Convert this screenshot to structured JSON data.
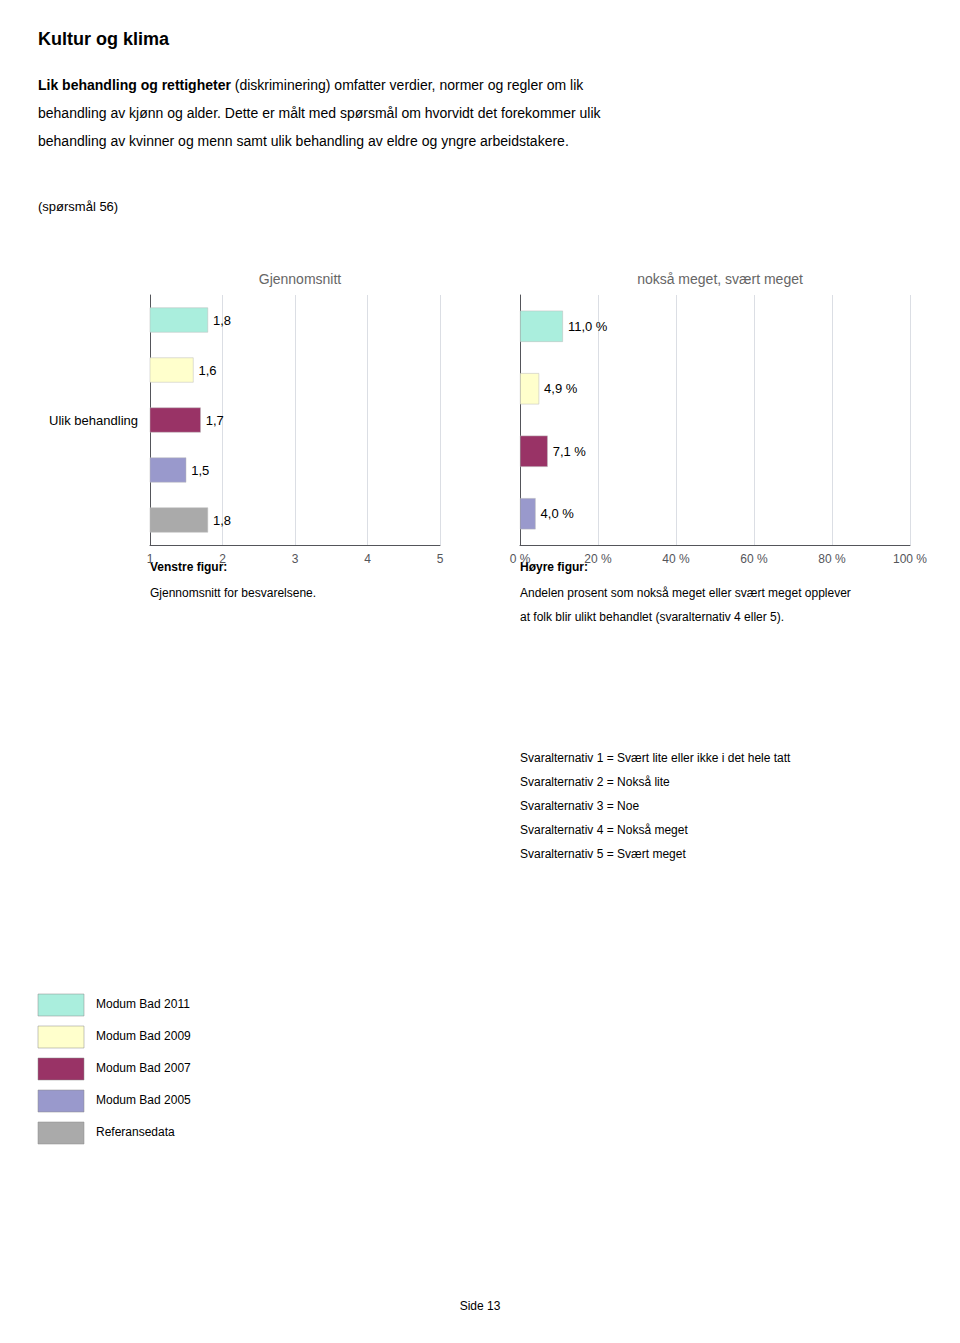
{
  "title": "Kultur og klima",
  "intro_bold": "Lik behandling og rettigheter",
  "intro_lines": [
    " (diskriminering) omfatter verdier, normer og regler om lik",
    "behandling av kjønn og alder. Dette er målt med spørsmål om hvorvidt det forekommer ulik",
    "behandling av kvinner og menn samt ulik behandling av eldre og yngre arbeidstakere."
  ],
  "question": "(spørsmål 56)",
  "chart_data": [
    {
      "type": "bar",
      "orientation": "horizontal",
      "title": "Gjennomsnitt",
      "ylabel": "Ulik behandling",
      "categories": [
        "Modum Bad 2011",
        "Modum Bad 2009",
        "Modum Bad 2007",
        "Modum Bad 2005",
        "Referansedata"
      ],
      "values": [
        1.8,
        1.6,
        1.7,
        1.5,
        1.8
      ],
      "value_labels": [
        "1,8",
        "1,6",
        "1,7",
        "1,5",
        "1,8"
      ],
      "colors": [
        "#aaeedd",
        "#ffffcc",
        "#993366",
        "#9999cc",
        "#aaaaaa"
      ],
      "xlim": [
        1,
        5
      ],
      "xticks": [
        1,
        2,
        3,
        4,
        5
      ],
      "grid": true,
      "data_labels": true,
      "tick_labels": "x",
      "legend": "lower left",
      "caption_title": "Venstre figur:",
      "caption_lines": [
        "Gjennomsnitt for besvarelsene."
      ]
    },
    {
      "type": "bar",
      "orientation": "horizontal",
      "title": "nokså meget, svært meget",
      "categories": [
        "Modum Bad 2011",
        "Modum Bad 2009",
        "Modum Bad 2007",
        "Modum Bad 2005"
      ],
      "values": [
        11.0,
        4.9,
        7.1,
        4.0
      ],
      "value_labels": [
        "11,0 %",
        "4,9 %",
        "7,1 %",
        "4,0 %"
      ],
      "colors": [
        "#aaeedd",
        "#ffffcc",
        "#993366",
        "#9999cc"
      ],
      "xlim": [
        0,
        100
      ],
      "xticks": [
        {
          "value": 0,
          "label": "0 %"
        },
        {
          "value": 20,
          "label": "20 %"
        },
        {
          "value": 40,
          "label": "40 %"
        },
        {
          "value": 60,
          "label": "60 %"
        },
        {
          "value": 80,
          "label": "80 %"
        },
        {
          "value": 100,
          "label": "100 %"
        }
      ],
      "grid": true,
      "data_labels": true,
      "tick_labels": "x",
      "caption_title": "Høyre figur:",
      "caption_lines": [
        "Andelen prosent som nokså meget eller svært meget opplever",
        "at folk blir ulikt behandlet (svaralternativ 4 eller 5)."
      ],
      "annotations": [
        "Svaralternativ 1 = Svært lite eller ikke i det hele tatt",
        "Svaralternativ 2 = Nokså lite",
        "Svaralternativ 3 = Noe",
        "Svaralternativ 4 = Nokså meget",
        "Svaralternativ 5 = Svært meget"
      ]
    }
  ],
  "footer": "Side 13"
}
